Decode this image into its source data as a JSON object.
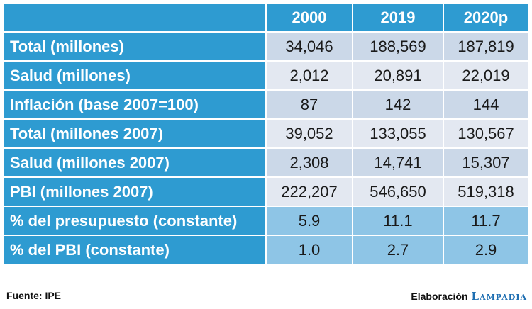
{
  "table": {
    "columns": [
      "",
      "2000",
      "2019",
      "2020p"
    ],
    "rows": [
      {
        "label": "Total (millones)",
        "values": [
          "34,046",
          "188,569",
          "187,819"
        ]
      },
      {
        "label": "Salud (millones)",
        "values": [
          "2,012",
          "20,891",
          "22,019"
        ]
      },
      {
        "label": "Inflación (base 2007=100)",
        "values": [
          "87",
          "142",
          "144"
        ]
      },
      {
        "label": "Total (millones 2007)",
        "values": [
          "39,052",
          "133,055",
          "130,567"
        ]
      },
      {
        "label": "Salud (millones 2007)",
        "values": [
          "2,308",
          "14,741",
          "15,307"
        ]
      },
      {
        "label": "PBI (millones 2007)",
        "values": [
          "222,207",
          "546,650",
          "519,318"
        ]
      },
      {
        "label": "% del presupuesto (constante)",
        "values": [
          "5.9",
          "11.1",
          "11.7"
        ]
      },
      {
        "label": "% del PBI (constante)",
        "values": [
          "1.0",
          "2.7",
          "2.9"
        ]
      }
    ]
  },
  "footer": {
    "source": "Fuente: IPE",
    "credit": "Elaboración",
    "brand": "Lampadia"
  },
  "colors": {
    "header_blue": "#2E9BD1",
    "cell_light": "#E3E8F1",
    "cell_mid": "#CBD8E8",
    "cell_highlight": "#8EC5E6",
    "brand_blue": "#1F6FB2"
  }
}
